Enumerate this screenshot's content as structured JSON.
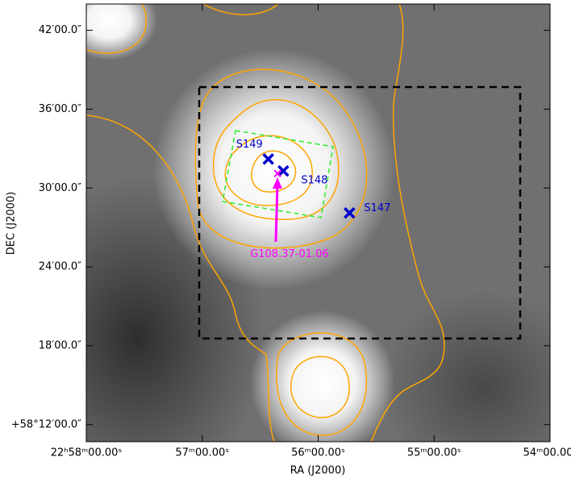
{
  "chart_data": {
    "type": "sky-map",
    "xlabel": "RA (J2000)",
    "ylabel": "DEC (J2000)",
    "xlim": [
      58.0,
      54.0
    ],
    "ylim": [
      10.7,
      44.0
    ],
    "xticks": [
      {
        "value": 58,
        "label": "22ʰ58ᵐ00.00ˢ"
      },
      {
        "value": 57,
        "label": "57ᵐ00.00ˢ"
      },
      {
        "value": 56,
        "label": "56ᵐ00.00ˢ"
      },
      {
        "value": 55,
        "label": "55ᵐ00.00ˢ"
      },
      {
        "value": 54,
        "label": "54ᵐ00.00ˢ"
      }
    ],
    "yticks": [
      {
        "value": 12,
        "label": "+58°12′00.0″"
      },
      {
        "value": 18,
        "label": "18′00.0″"
      },
      {
        "value": 24,
        "label": "24′00.0″"
      },
      {
        "value": 30,
        "label": "30′00.0″"
      },
      {
        "value": 36,
        "label": "36′00.0″"
      },
      {
        "value": 42,
        "label": "42′00.0″"
      }
    ],
    "points": [
      {
        "label": "S149",
        "x": 56.43,
        "y": 32.2,
        "color": "#0000cc"
      },
      {
        "label": "S148",
        "x": 56.3,
        "y": 31.3,
        "color": "#0000cc"
      },
      {
        "label": "S147",
        "x": 55.73,
        "y": 28.1,
        "color": "#0000cc"
      },
      {
        "label": "G108.37-01.06",
        "x": 56.35,
        "y": 31.1,
        "color": "#ff00ff"
      }
    ]
  }
}
